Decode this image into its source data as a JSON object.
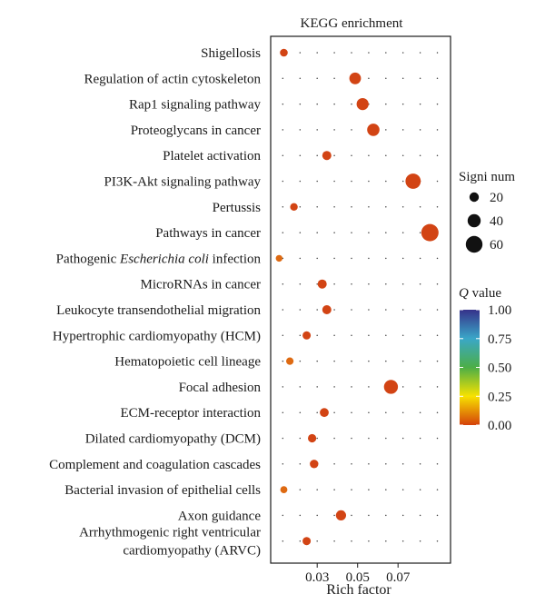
{
  "chart_data": {
    "type": "scatter",
    "title": "KEGG enrichment",
    "xlabel": "Rich factor",
    "ylabel": "",
    "xlim": [
      0.007,
      0.096
    ],
    "xticks": [
      "0.03",
      "0.05",
      "0.07"
    ],
    "xtick_values": [
      0.03,
      0.05,
      0.07
    ],
    "grid": true,
    "categories": [
      "Shigellosis",
      "Regulation of actin cytoskeleton",
      "Rap1 signaling pathway",
      "Proteoglycans in cancer",
      "Platelet activation",
      "PI3K-Akt signaling pathway",
      "Pertussis",
      "Pathways in cancer",
      "Pathogenic Escherichia coli infection",
      "MicroRNAs in cancer",
      "Leukocyte transendothelial migration",
      "Hypertrophic cardiomyopathy (HCM)",
      "Hematopoietic cell lineage",
      "Focal adhesion",
      "ECM-receptor interaction",
      "Dilated cardiomyopathy (DCM)",
      "Complement and coagulation cascades",
      "Bacterial invasion of epithelial cells",
      "Axon guidance",
      "Arrhythmogenic right ventricular cardiomyopathy (ARVC)"
    ],
    "category_display": [
      {
        "parts": [
          {
            "t": "Shigellosis"
          }
        ]
      },
      {
        "parts": [
          {
            "t": "Regulation of actin cytoskeleton"
          }
        ]
      },
      {
        "parts": [
          {
            "t": "Rap1 signaling pathway"
          }
        ]
      },
      {
        "parts": [
          {
            "t": "Proteoglycans in cancer"
          }
        ]
      },
      {
        "parts": [
          {
            "t": "Platelet activation"
          }
        ]
      },
      {
        "parts": [
          {
            "t": "PI3K-Akt signaling pathway"
          }
        ]
      },
      {
        "parts": [
          {
            "t": "Pertussis"
          }
        ]
      },
      {
        "parts": [
          {
            "t": "Pathways in cancer"
          }
        ]
      },
      {
        "parts": [
          {
            "t": "Pathogenic "
          },
          {
            "t": "Escherichia coli",
            "italic": true
          },
          {
            "t": " infection"
          }
        ]
      },
      {
        "parts": [
          {
            "t": "MicroRNAs in cancer"
          }
        ]
      },
      {
        "parts": [
          {
            "t": "Leukocyte transendothelial migration"
          }
        ]
      },
      {
        "parts": [
          {
            "t": "Hypertrophic cardiomyopathy (HCM)"
          }
        ]
      },
      {
        "parts": [
          {
            "t": "Hematopoietic cell lineage"
          }
        ]
      },
      {
        "parts": [
          {
            "t": "Focal adhesion"
          }
        ]
      },
      {
        "parts": [
          {
            "t": "ECM-receptor interaction"
          }
        ]
      },
      {
        "parts": [
          {
            "t": "Dilated cardiomyopathy (DCM)"
          }
        ]
      },
      {
        "parts": [
          {
            "t": "Complement and coagulation cascades"
          }
        ]
      },
      {
        "parts": [
          {
            "t": "Bacterial invasion of epithelial cells"
          }
        ]
      },
      {
        "parts": [
          {
            "t": "Axon guidance"
          }
        ]
      },
      {
        "lines": [
          "Arrhythmogenic right ventricular",
          "cardiomyopathy (ARVC)"
        ]
      }
    ],
    "points": [
      {
        "category": "Shigellosis",
        "rich_factor": 0.0135,
        "signi_num": 11,
        "q_value": 0.0
      },
      {
        "category": "Regulation of actin cytoskeleton",
        "rich_factor": 0.0488,
        "signi_num": 32,
        "q_value": 0.0
      },
      {
        "category": "Rap1 signaling pathway",
        "rich_factor": 0.0525,
        "signi_num": 34,
        "q_value": 0.0
      },
      {
        "category": "Proteoglycans in cancer",
        "rich_factor": 0.0578,
        "signi_num": 36,
        "q_value": 0.0
      },
      {
        "category": "Platelet activation",
        "rich_factor": 0.0348,
        "signi_num": 18,
        "q_value": 0.0
      },
      {
        "category": "PI3K-Akt signaling pathway",
        "rich_factor": 0.0775,
        "signi_num": 52,
        "q_value": 0.0
      },
      {
        "category": "Pertussis",
        "rich_factor": 0.0185,
        "signi_num": 10,
        "q_value": 0.01
      },
      {
        "category": "Pathways in cancer",
        "rich_factor": 0.0858,
        "signi_num": 63,
        "q_value": 0.0
      },
      {
        "category": "Pathogenic Escherichia coli infection",
        "rich_factor": 0.0112,
        "signi_num": 5,
        "q_value": 0.04
      },
      {
        "category": "MicroRNAs in cancer",
        "rich_factor": 0.0325,
        "signi_num": 18,
        "q_value": 0.0
      },
      {
        "category": "Leukocyte transendothelial migration",
        "rich_factor": 0.0348,
        "signi_num": 18,
        "q_value": 0.0
      },
      {
        "category": "Hypertrophic cardiomyopathy (HCM)",
        "rich_factor": 0.0248,
        "signi_num": 13,
        "q_value": 0.0
      },
      {
        "category": "Hematopoietic cell lineage",
        "rich_factor": 0.0165,
        "signi_num": 9,
        "q_value": 0.05
      },
      {
        "category": "Focal adhesion",
        "rich_factor": 0.0665,
        "signi_num": 45,
        "q_value": 0.0
      },
      {
        "category": "ECM-receptor interaction",
        "rich_factor": 0.0335,
        "signi_num": 17,
        "q_value": 0.0
      },
      {
        "category": "Dilated cardiomyopathy (DCM)",
        "rich_factor": 0.0275,
        "signi_num": 14,
        "q_value": 0.0
      },
      {
        "category": "Complement and coagulation cascades",
        "rich_factor": 0.0285,
        "signi_num": 15,
        "q_value": 0.0
      },
      {
        "category": "Bacterial invasion of epithelial cells",
        "rich_factor": 0.0135,
        "signi_num": 7,
        "q_value": 0.05
      },
      {
        "category": "Axon guidance",
        "rich_factor": 0.0418,
        "signi_num": 24,
        "q_value": 0.0
      },
      {
        "category": "Arrhythmogenic right ventricular cardiomyopathy (ARVC)",
        "rich_factor": 0.0248,
        "signi_num": 13,
        "q_value": 0.0
      }
    ],
    "size_legend": {
      "title": "Signi num",
      "values": [
        20,
        40,
        60
      ],
      "labels": [
        "20",
        "40",
        "60"
      ]
    },
    "color_legend": {
      "title_italic": "Q",
      "title_rest": " value",
      "min": 0.0,
      "max": 1.0,
      "tick_values": [
        0.0,
        0.25,
        0.5,
        0.75,
        1.0
      ],
      "tick_labels": [
        "0.00",
        "0.25",
        "0.50",
        "0.75",
        "1.00"
      ],
      "gradient": [
        "#d5420a",
        "#f7e200",
        "#4cae47",
        "#3aa7c8",
        "#36328a"
      ]
    },
    "point_color": "#d24414",
    "grid_dot_color": "#444444"
  }
}
